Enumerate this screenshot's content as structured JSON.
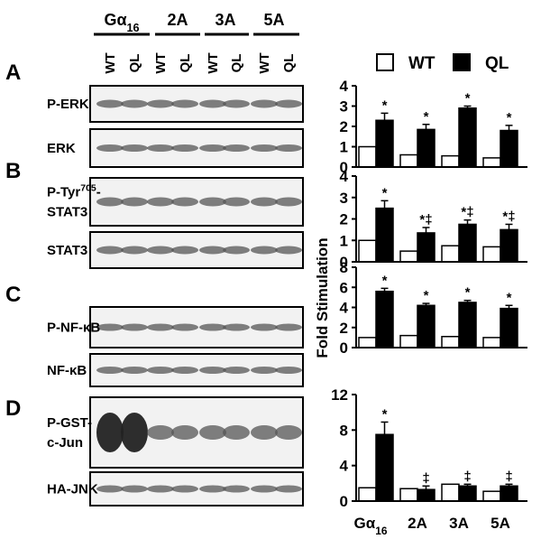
{
  "panels": [
    "A",
    "B",
    "C",
    "D"
  ],
  "groups": [
    [
      "Gα",
      {
        "sub": "16"
      }
    ],
    [
      "2A"
    ],
    [
      "3A"
    ],
    [
      "5A"
    ]
  ],
  "lanes": [
    "WT",
    "QL",
    "WT",
    "QL",
    "WT",
    "QL",
    "WT",
    "QL"
  ],
  "blots": [
    {
      "lines": [
        [
          "P-ERK"
        ]
      ]
    },
    {
      "lines": [
        [
          "ERK"
        ]
      ]
    },
    {
      "lines": [
        [
          "P-Tyr",
          {
            "sup": "705"
          },
          "-"
        ],
        [
          "STAT3"
        ]
      ]
    },
    {
      "lines": [
        [
          "STAT3"
        ]
      ]
    },
    {
      "lines": [
        [
          "P-NF-κB"
        ]
      ]
    },
    {
      "lines": [
        [
          "NF-κB"
        ]
      ]
    },
    {
      "lines": [
        [
          "P-GST-"
        ],
        [
          "c-Jun"
        ]
      ]
    },
    {
      "lines": [
        [
          "HA-JNK"
        ]
      ]
    }
  ],
  "y_label": "Fold Stimulation",
  "chart_data": [
    {
      "type": "bar",
      "categories": [
        null,
        null,
        null,
        null
      ],
      "series": [
        {
          "name": "WT",
          "color": "#ffffff",
          "values": [
            1,
            0.6,
            0.55,
            0.45
          ]
        },
        {
          "name": "QL",
          "color": "#000000",
          "values": [
            2.3,
            1.85,
            2.9,
            1.8
          ],
          "errors": [
            0.35,
            0.25,
            0.1,
            0.25
          ]
        }
      ],
      "annotations": [
        "*",
        "*",
        "*",
        "*"
      ],
      "ylim": [
        0,
        4
      ],
      "yticks": [
        0,
        1,
        2,
        3,
        4
      ]
    },
    {
      "type": "bar",
      "categories": [
        null,
        null,
        null,
        null
      ],
      "series": [
        {
          "color": "#ffffff",
          "values": [
            1,
            0.5,
            0.75,
            0.7
          ]
        },
        {
          "color": "#000000",
          "values": [
            2.5,
            1.35,
            1.75,
            1.5
          ],
          "errors": [
            0.35,
            0.25,
            0.2,
            0.25
          ]
        }
      ],
      "annotations": [
        "*",
        "*‡",
        "*‡",
        "*‡"
      ],
      "ylim": [
        0,
        4
      ],
      "yticks": [
        0,
        1,
        2,
        3,
        4
      ]
    },
    {
      "type": "bar",
      "categories": [
        null,
        null,
        null,
        null
      ],
      "series": [
        {
          "color": "#ffffff",
          "values": [
            1,
            1.2,
            1.1,
            1.0
          ]
        },
        {
          "color": "#000000",
          "values": [
            5.6,
            4.2,
            4.5,
            3.9
          ],
          "errors": [
            0.3,
            0.2,
            0.2,
            0.3
          ]
        }
      ],
      "annotations": [
        "*",
        "*",
        "*",
        "*"
      ],
      "ylim": [
        0,
        8
      ],
      "yticks": [
        0,
        2,
        4,
        6,
        8
      ]
    },
    {
      "type": "bar",
      "categories": [
        [
          "Gα",
          {
            "sub": "16"
          }
        ],
        [
          "2A"
        ],
        [
          "3A"
        ],
        [
          "5A"
        ]
      ],
      "series": [
        {
          "color": "#ffffff",
          "values": [
            1.5,
            1.4,
            1.9,
            1.1
          ]
        },
        {
          "color": "#000000",
          "values": [
            7.5,
            1.3,
            1.7,
            1.7
          ],
          "errors": [
            1.4,
            0.4,
            0.2,
            0.2
          ]
        }
      ],
      "annotations": [
        "*",
        "‡",
        "‡",
        "‡"
      ],
      "ylim": [
        0,
        12
      ],
      "yticks": [
        0,
        4,
        8,
        12
      ]
    }
  ]
}
